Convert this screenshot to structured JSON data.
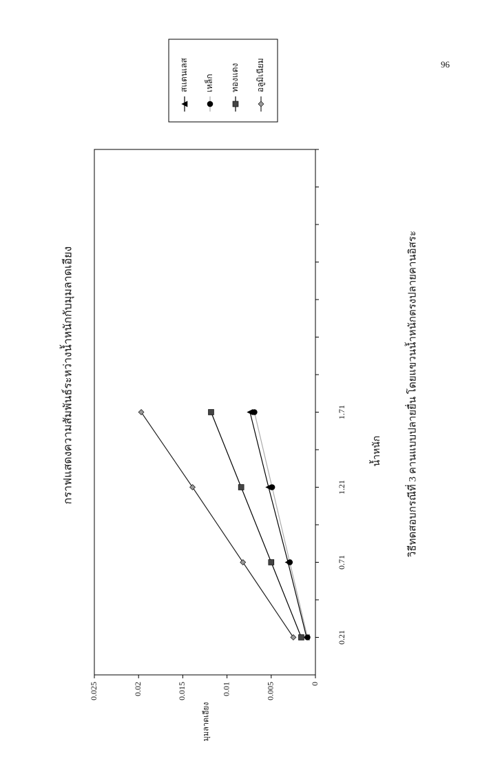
{
  "page_number": "96",
  "chart_data": {
    "type": "line",
    "title": "กราฟแสดงความสัมพันธ์ระหว่างน้ำหนักกับมุมลาดเอียง",
    "x_label": "น้ำหนัก",
    "y_label": "มุมลาดเอียง",
    "caption": "วิธีทดสอบกรณีที่ 3 คานแบบปลายยื่น โดยแขวนน้ำหนักตรงปลายคานอิสระ",
    "x": [
      0.21,
      0.71,
      1.21,
      1.71
    ],
    "xlim": [
      -0.04,
      3.46
    ],
    "xticks": [
      0.21,
      0.71,
      1.21,
      1.71
    ],
    "xminor": [
      0.46,
      0.96,
      1.46,
      1.96,
      2.21,
      2.46,
      2.71,
      2.96,
      3.21,
      3.46
    ],
    "ylim": [
      0,
      0.025
    ],
    "yticks": [
      0,
      0.005,
      0.01,
      0.015,
      0.02,
      0.025
    ],
    "series": [
      {
        "name": "สแตนเลส",
        "color": "#000000",
        "marker": "triangle",
        "values": [
          0.001,
          0.0031,
          0.0053,
          0.0074
        ]
      },
      {
        "name": "เหล็ก",
        "color": "#aaaaaa",
        "marker": "circle",
        "values": [
          0.0009,
          0.0029,
          0.0049,
          0.0069
        ]
      },
      {
        "name": "ทองแดง",
        "color": "#000000",
        "marker": "square",
        "values": [
          0.0016,
          0.005,
          0.0084,
          0.0118
        ]
      },
      {
        "name": "อลูมิเนียม",
        "color": "#222222",
        "marker": "diamond",
        "values": [
          0.0025,
          0.0082,
          0.0139,
          0.0197
        ]
      }
    ]
  }
}
